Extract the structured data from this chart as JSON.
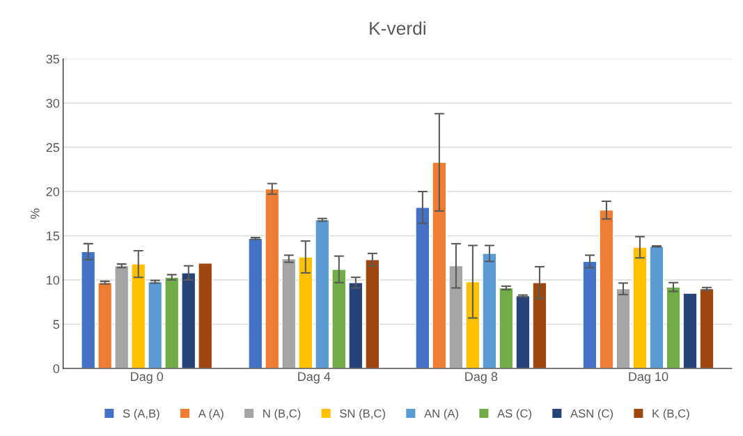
{
  "chart_data": {
    "type": "bar",
    "title": "K-verdi",
    "ylabel": "%",
    "categories": [
      "Dag 0",
      "Dag 4",
      "Dag 8",
      "Dag 10"
    ],
    "series": [
      {
        "name": "S (A,B)",
        "color": "#4472c4",
        "values": [
          13.2,
          14.7,
          18.2,
          12.1
        ],
        "errors": [
          0.9,
          0.1,
          1.8,
          0.7
        ]
      },
      {
        "name": "A (A)",
        "color": "#ed7d31",
        "values": [
          9.7,
          20.3,
          23.3,
          17.9
        ],
        "errors": [
          0.15,
          0.6,
          5.5,
          1.0
        ]
      },
      {
        "name": "N (B,C)",
        "color": "#a5a5a5",
        "values": [
          11.6,
          12.4,
          11.6,
          9.0
        ],
        "errors": [
          0.2,
          0.4,
          2.5,
          0.65
        ]
      },
      {
        "name": "SN (B,C)",
        "color": "#ffc000",
        "values": [
          11.8,
          12.6,
          9.8,
          13.7
        ],
        "errors": [
          1.5,
          1.8,
          4.1,
          1.2
        ]
      },
      {
        "name": "AN (A)",
        "color": "#5b9bd5",
        "values": [
          9.8,
          16.8,
          13.0,
          13.8
        ],
        "errors": [
          0.15,
          0.15,
          0.9,
          0.05
        ]
      },
      {
        "name": "AS (C)",
        "color": "#70ad47",
        "values": [
          10.3,
          11.2,
          9.1,
          9.2
        ],
        "errors": [
          0.3,
          1.5,
          0.2,
          0.5
        ]
      },
      {
        "name": "ASN (C)",
        "color": "#264478",
        "values": [
          10.8,
          9.7,
          8.2,
          8.5
        ],
        "errors": [
          0.8,
          0.6,
          0.1,
          null
        ]
      },
      {
        "name": "K (B,C)",
        "color": "#9e480e",
        "values": [
          11.9,
          12.3,
          9.7,
          9.0
        ],
        "errors": [
          null,
          0.7,
          1.8,
          0.15
        ]
      }
    ],
    "ylim": [
      0,
      35
    ],
    "yticks": [
      0,
      5,
      10,
      15,
      20,
      25,
      30,
      35
    ],
    "grid": "y",
    "legend": "bottom"
  }
}
